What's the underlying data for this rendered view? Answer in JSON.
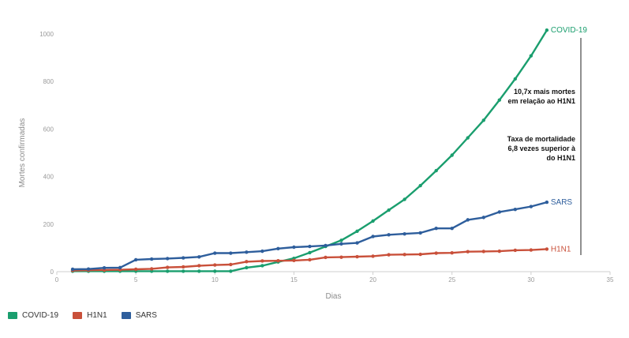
{
  "chart_data": {
    "type": "line",
    "xlabel": "Dias",
    "ylabel": "Mortes confirmadas",
    "xlim": [
      0,
      35
    ],
    "ylim": [
      0,
      1000
    ],
    "xticks": [
      0,
      5,
      10,
      15,
      20,
      25,
      30,
      35
    ],
    "yticks": [
      0,
      200,
      400,
      600,
      800,
      1000
    ],
    "grid": false,
    "legend_position": "bottom-left",
    "x": [
      1,
      2,
      3,
      4,
      5,
      6,
      7,
      8,
      9,
      10,
      11,
      12,
      13,
      14,
      15,
      16,
      17,
      18,
      19,
      20,
      21,
      22,
      23,
      24,
      25,
      26,
      27,
      28,
      29,
      30,
      31
    ],
    "series": [
      {
        "name": "COVID-19",
        "color": "#1a9e6e",
        "end_label": "COVID-19",
        "values": [
          2,
          2,
          2,
          2,
          2,
          2,
          2,
          2,
          2,
          2,
          2,
          17,
          25,
          41,
          56,
          80,
          106,
          132,
          170,
          213,
          259,
          304,
          362,
          425,
          490,
          563,
          637,
          722,
          811,
          908,
          1016
        ]
      },
      {
        "name": "H1N1",
        "color": "#c9503a",
        "end_label": "H1N1",
        "values": [
          5,
          6,
          7,
          8,
          10,
          12,
          18,
          20,
          25,
          28,
          30,
          42,
          45,
          46,
          47,
          50,
          60,
          61,
          63,
          65,
          71,
          72,
          73,
          78,
          79,
          84,
          85,
          86,
          90,
          91,
          95
        ]
      },
      {
        "name": "SARS",
        "color": "#2e5e9c",
        "end_label": "SARS",
        "values": [
          10,
          11,
          16,
          17,
          50,
          53,
          55,
          58,
          62,
          78,
          78,
          82,
          86,
          97,
          103,
          106,
          110,
          117,
          121,
          148,
          155,
          159,
          163,
          182,
          182,
          218,
          228,
          251,
          262,
          274,
          292
        ]
      }
    ],
    "annotations": [
      {
        "lines": [
          "10,7x mais mortes",
          "em relação ao H1N1"
        ]
      },
      {
        "lines": [
          "Taxa de mortalidade",
          "6,8 vezes superior à",
          "do H1N1"
        ]
      }
    ]
  }
}
